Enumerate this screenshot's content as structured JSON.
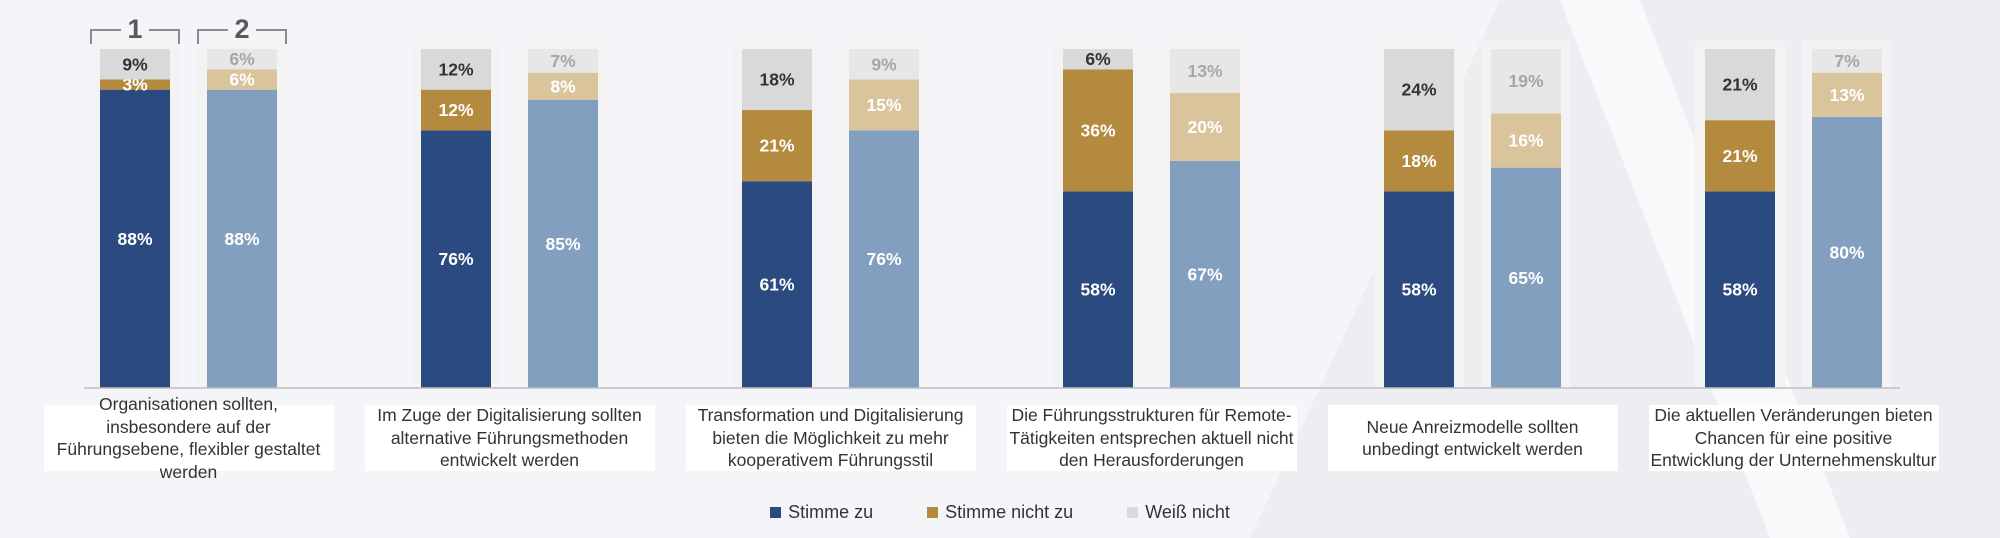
{
  "chart_data": {
    "type": "bar",
    "stacked": true,
    "ylim": [
      0,
      100
    ],
    "group_markers": [
      "1",
      "2"
    ],
    "categories": [
      "Organisationen sollten, insbesondere auf der Führungsebene, flexibler gestaltet werden",
      "Im Zuge der Digitalisierung sollten alternative Führungsmethoden entwickelt werden",
      "Transformation und Digitalisierung bieten die Möglichkeit zu mehr kooperativem Führungsstil",
      "Die Führungsstrukturen für Remote-Tätigkeiten entsprechen aktuell nicht den Herausforderungen",
      "Neue Anreizmodelle sollten unbedingt entwickelt werden",
      "Die aktuellen Veränderungen bieten Chancen für eine positive Entwicklung der Unternehmenskultur"
    ],
    "groups": [
      {
        "name": "1",
        "series": [
          {
            "name": "Stimme zu",
            "values": [
              88,
              76,
              61,
              58,
              58,
              58
            ]
          },
          {
            "name": "Stimme nicht zu",
            "values": [
              3,
              12,
              21,
              36,
              18,
              21
            ]
          },
          {
            "name": "Weiß nicht",
            "values": [
              9,
              12,
              18,
              6,
              24,
              21
            ]
          }
        ]
      },
      {
        "name": "2",
        "series": [
          {
            "name": "Stimme zu",
            "values": [
              88,
              85,
              76,
              67,
              65,
              80
            ]
          },
          {
            "name": "Stimme nicht zu",
            "values": [
              6,
              8,
              15,
              20,
              16,
              13
            ]
          },
          {
            "name": "Weiß nicht",
            "values": [
              6,
              7,
              9,
              13,
              19,
              7
            ]
          }
        ]
      }
    ],
    "colors": {
      "1": [
        "#2b4a80",
        "#b48a3e",
        "#d9d9d9"
      ],
      "2": [
        "#839fbf",
        "#d9c49c",
        "#e7e7e7"
      ]
    },
    "label_colors": {
      "1": [
        "#ffffff",
        "#ffffff",
        "#333333"
      ],
      "2": [
        "#ffffff",
        "#ffffff",
        "#a6a6a6"
      ]
    },
    "legend": [
      {
        "name": "Stimme zu",
        "color": "#2b4a80"
      },
      {
        "name": "Stimme nicht zu",
        "color": "#b48a3e"
      },
      {
        "name": "Weiß nicht",
        "color": "#d9d9d9"
      }
    ],
    "legend_position": "bottom"
  }
}
